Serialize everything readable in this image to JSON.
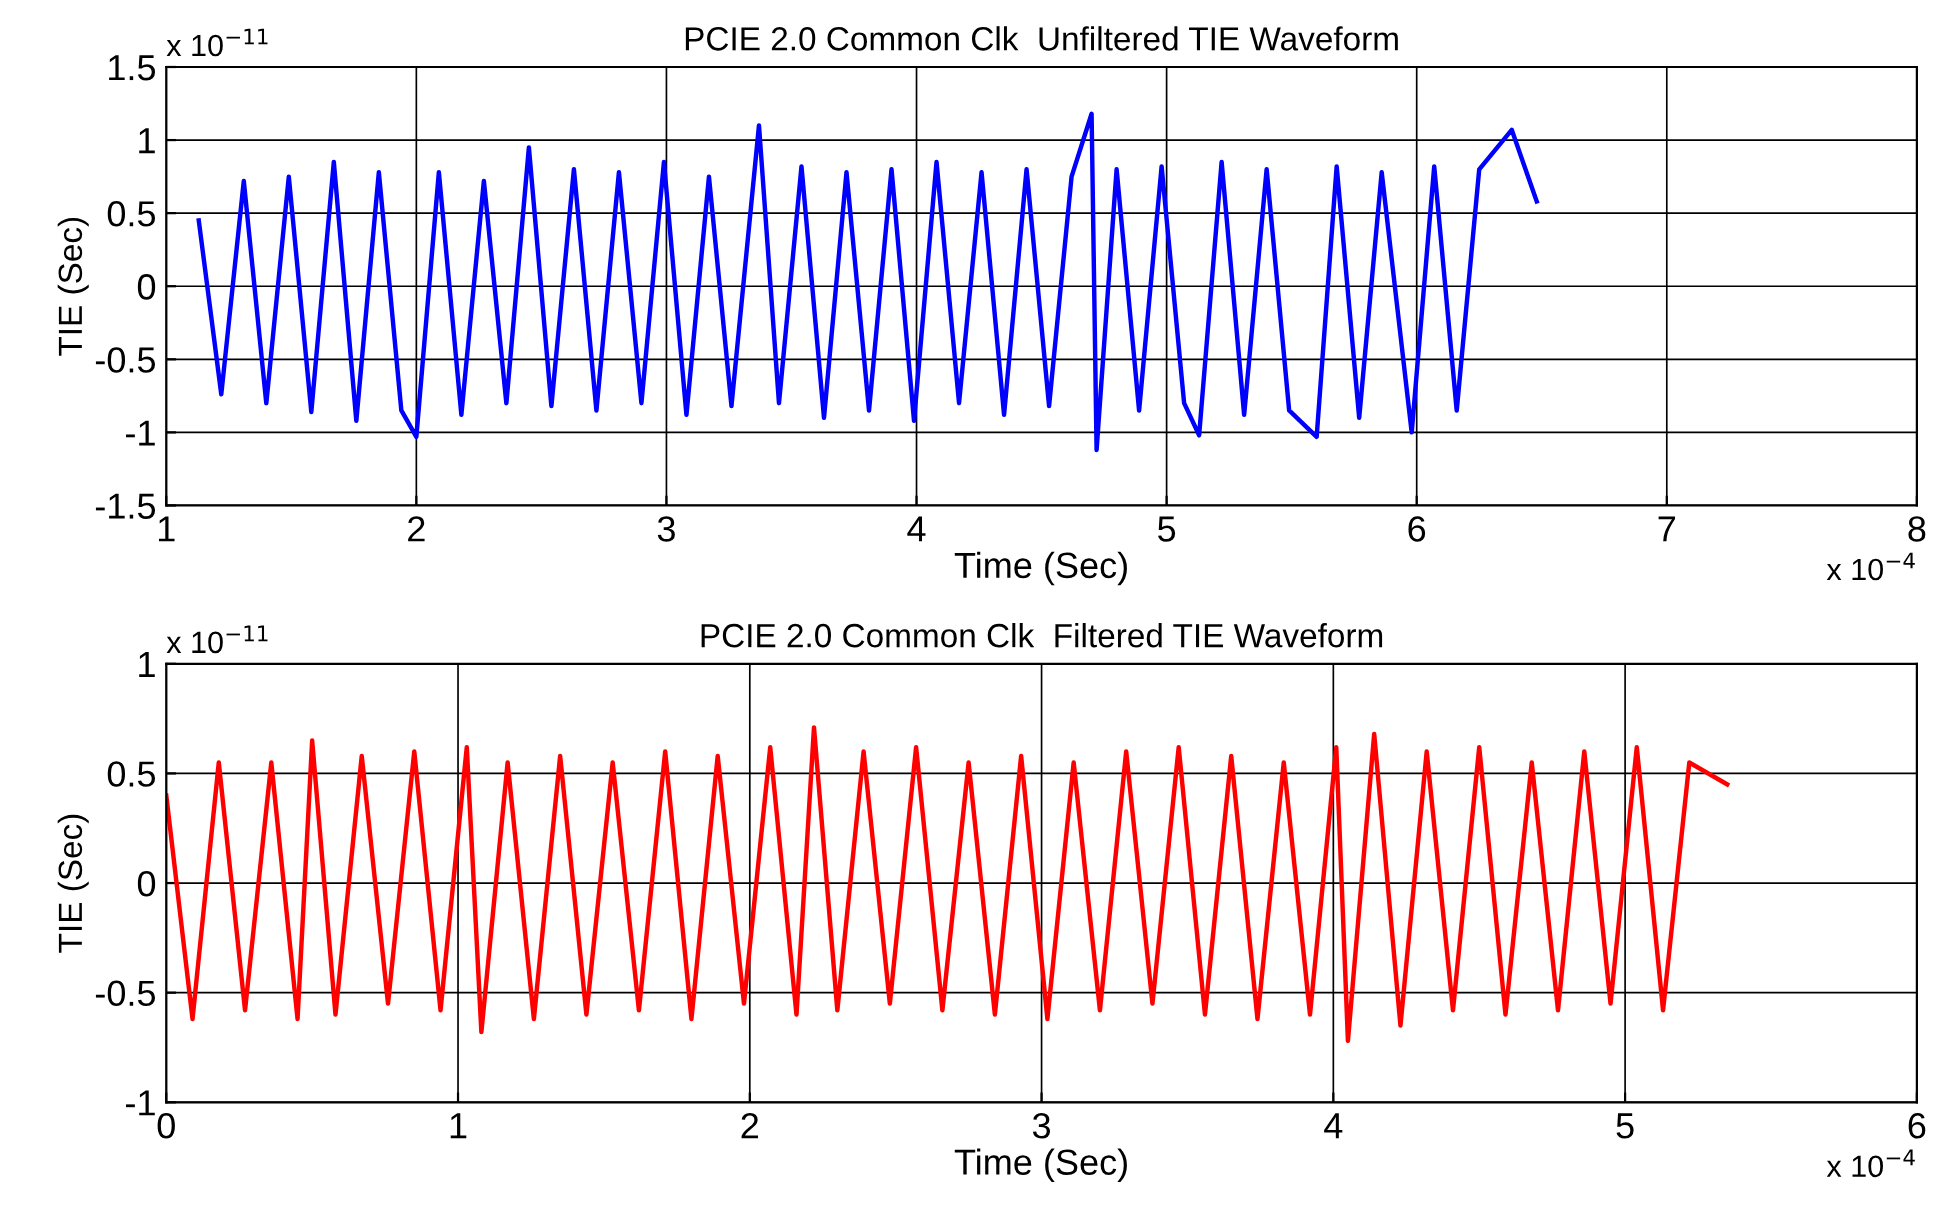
{
  "chart_data": [
    {
      "type": "line",
      "title": "PCIE 2.0 Common Clk  Unfiltered TIE Waveform",
      "xlabel": "Time (Sec)",
      "ylabel": "TIE (Sec)",
      "annotations": [
        "x 10$^{−11}$",
        "x 10$^{−4}$"
      ],
      "series": [
        {
          "color": "#0000ff",
          "x": [
            1.13,
            1.22,
            1.31,
            1.4,
            1.49,
            1.58,
            1.67,
            1.76,
            1.85,
            1.94,
            2.0,
            2.09,
            2.18,
            2.27,
            2.36,
            2.45,
            2.54,
            2.63,
            2.72,
            2.81,
            2.9,
            2.99,
            3.08,
            3.17,
            3.26,
            3.37,
            3.45,
            3.54,
            3.63,
            3.72,
            3.81,
            3.9,
            3.99,
            4.08,
            4.17,
            4.26,
            4.35,
            4.44,
            4.53,
            4.62,
            4.7,
            4.72,
            4.8,
            4.89,
            4.98,
            5.07,
            5.13,
            5.22,
            5.31,
            5.4,
            5.49,
            5.6,
            5.68,
            5.77,
            5.86,
            5.98,
            6.07,
            6.16,
            6.25,
            6.38,
            6.48
          ],
          "values": [
            0.45,
            -0.74,
            0.72,
            -0.8,
            0.75,
            -0.86,
            0.85,
            -0.92,
            0.78,
            -0.85,
            -1.03,
            0.78,
            -0.88,
            0.72,
            -0.8,
            0.95,
            -0.82,
            0.8,
            -0.85,
            0.78,
            -0.8,
            0.85,
            -0.88,
            0.75,
            -0.82,
            1.1,
            -0.8,
            0.82,
            -0.9,
            0.78,
            -0.85,
            0.8,
            -0.92,
            0.85,
            -0.8,
            0.78,
            -0.88,
            0.8,
            -0.82,
            0.75,
            1.18,
            -1.12,
            0.8,
            -0.85,
            0.82,
            -0.8,
            -1.02,
            0.85,
            -0.88,
            0.8,
            -0.85,
            -1.03,
            0.82,
            -0.9,
            0.78,
            -1.0,
            0.82,
            -0.85,
            0.8,
            1.07,
            0.58
          ]
        }
      ],
      "xlim": [
        1,
        8
      ],
      "xticks": [
        1,
        2,
        3,
        4,
        5,
        6,
        7,
        8
      ],
      "ylim": [
        -1.5,
        1.5
      ],
      "yticks": [
        -1.5,
        -1,
        -0.5,
        0,
        0.5,
        1,
        1.5
      ],
      "grid": true,
      "line_style": "solid"
    },
    {
      "type": "line",
      "title": "PCIE 2.0 Common Clk  Filtered TIE Waveform",
      "xlabel": "Time (Sec)",
      "ylabel": "TIE (Sec)",
      "annotations": [
        "x 10$^{−11}$",
        "x 10$^{−4}$"
      ],
      "series": [
        {
          "color": "#ff0000",
          "x": [
            0,
            0.09,
            0.18,
            0.27,
            0.36,
            0.45,
            0.5,
            0.58,
            0.67,
            0.76,
            0.85,
            0.94,
            1.03,
            1.08,
            1.17,
            1.26,
            1.35,
            1.44,
            1.53,
            1.62,
            1.71,
            1.8,
            1.89,
            1.98,
            2.07,
            2.16,
            2.22,
            2.3,
            2.39,
            2.48,
            2.57,
            2.66,
            2.75,
            2.84,
            2.93,
            3.02,
            3.11,
            3.2,
            3.29,
            3.38,
            3.47,
            3.56,
            3.65,
            3.74,
            3.83,
            3.92,
            4.01,
            4.05,
            4.14,
            4.23,
            4.32,
            4.41,
            4.5,
            4.59,
            4.68,
            4.77,
            4.86,
            4.95,
            5.04,
            5.13,
            5.22,
            5.35
          ],
          "values": [
            0.4,
            -0.62,
            0.55,
            -0.58,
            0.55,
            -0.62,
            0.65,
            -0.6,
            0.58,
            -0.55,
            0.6,
            -0.58,
            0.62,
            -0.68,
            0.55,
            -0.62,
            0.58,
            -0.6,
            0.55,
            -0.58,
            0.6,
            -0.62,
            0.58,
            -0.55,
            0.62,
            -0.6,
            0.71,
            -0.58,
            0.6,
            -0.55,
            0.62,
            -0.58,
            0.55,
            -0.6,
            0.58,
            -0.62,
            0.55,
            -0.58,
            0.6,
            -0.55,
            0.62,
            -0.6,
            0.58,
            -0.62,
            0.55,
            -0.6,
            0.62,
            -0.72,
            0.68,
            -0.65,
            0.6,
            -0.58,
            0.62,
            -0.6,
            0.55,
            -0.58,
            0.6,
            -0.55,
            0.62,
            -0.58,
            0.55,
            0.45
          ]
        }
      ],
      "xlim": [
        0,
        6
      ],
      "xticks": [
        0,
        1,
        2,
        3,
        4,
        5,
        6
      ],
      "ylim": [
        -1,
        1
      ],
      "yticks": [
        -1,
        -0.5,
        0,
        0.5,
        1
      ],
      "grid": true,
      "line_style": "solid"
    }
  ]
}
